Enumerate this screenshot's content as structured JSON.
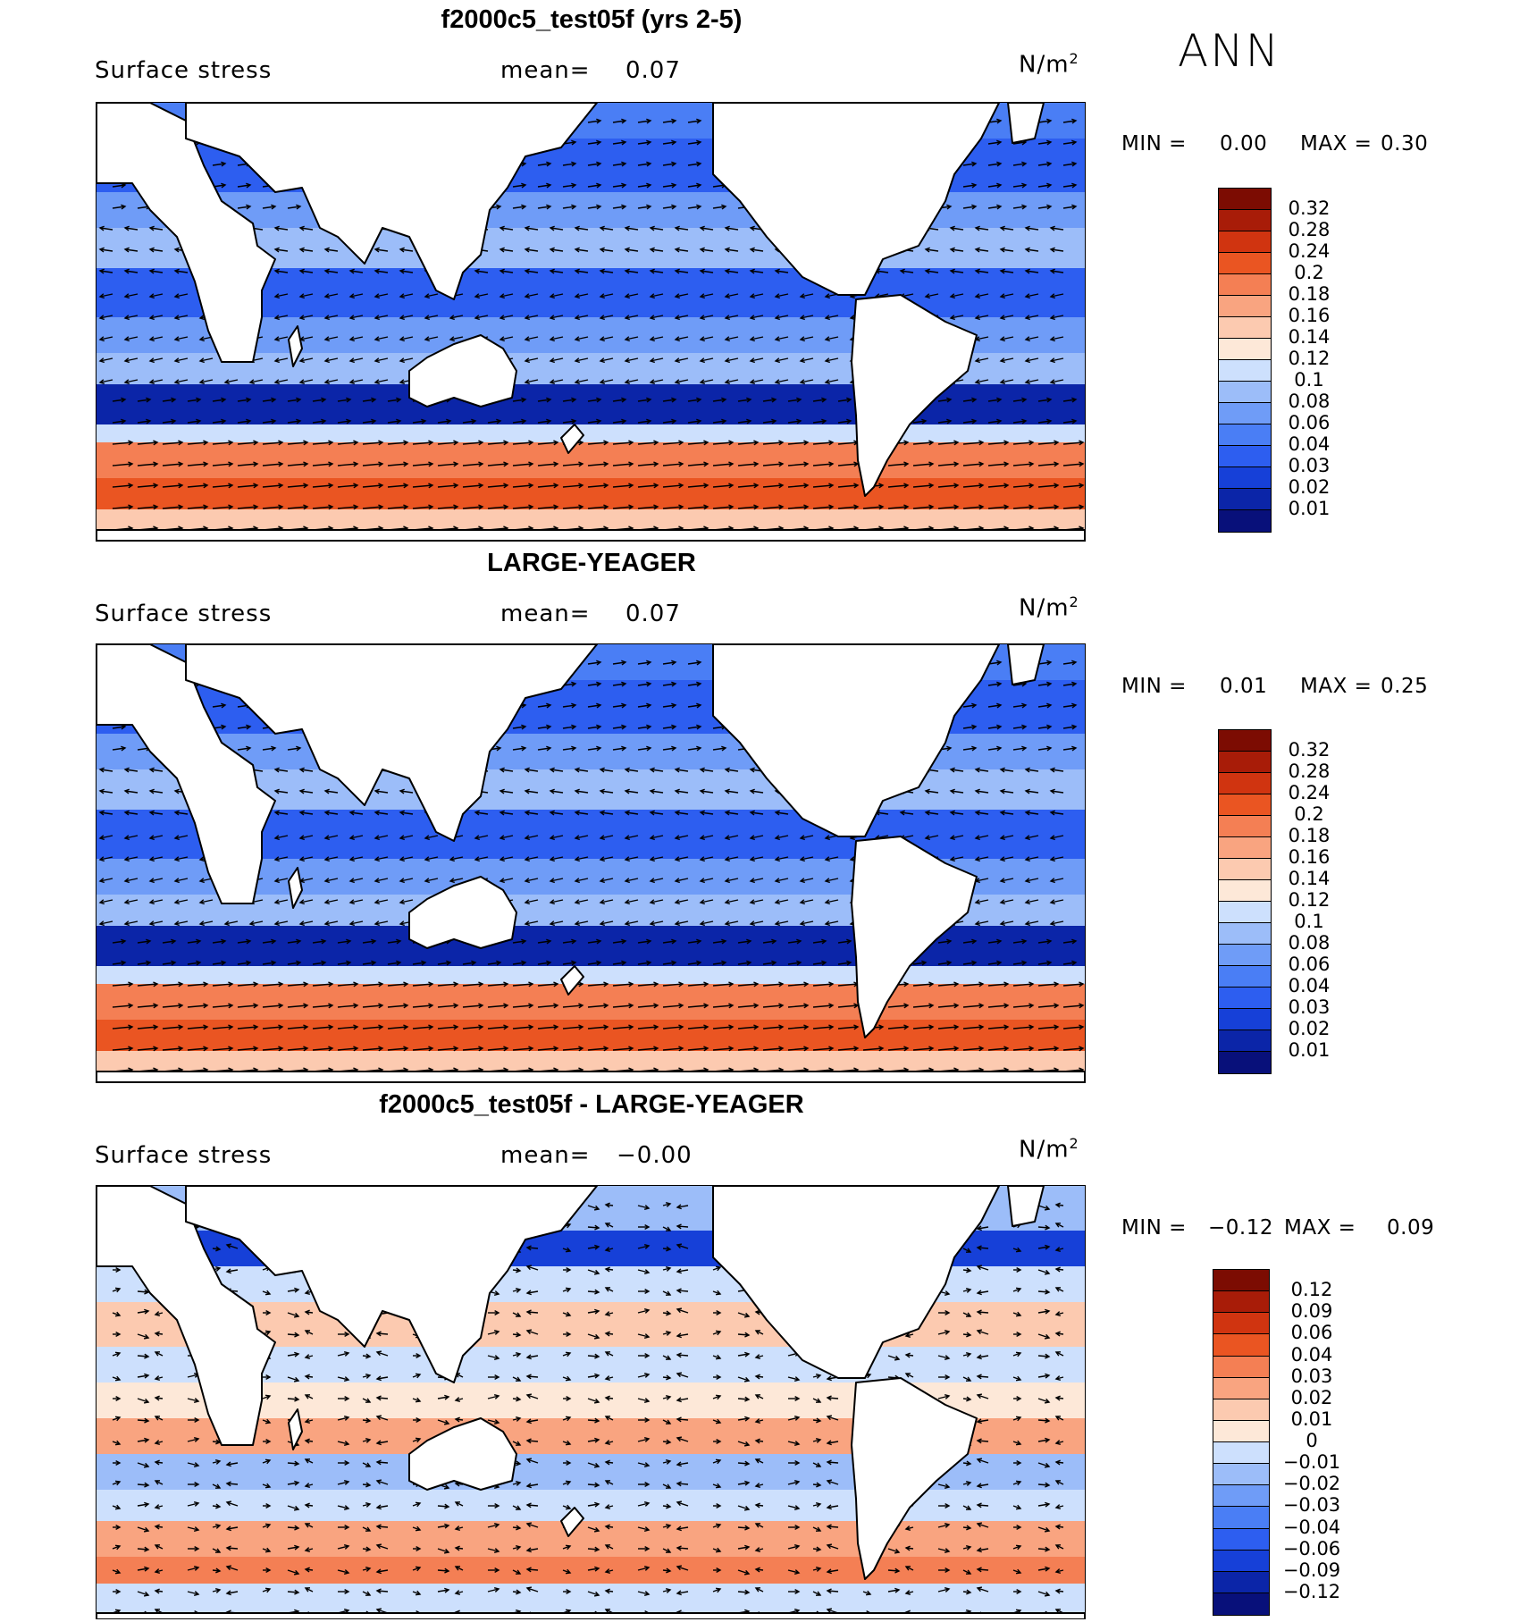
{
  "season": "ANN",
  "colors": {
    "fieldScale": [
      "#08107a",
      "#0b25a8",
      "#1640d8",
      "#2d5ef0",
      "#4a7ef5",
      "#6f9cf7",
      "#9cbdf9",
      "#cde0fd",
      "#fde8d8",
      "#fccab0",
      "#f9a480",
      "#f47f54",
      "#ea5522",
      "#d03410",
      "#a81c08",
      "#7c0c02"
    ],
    "diffScale": [
      "#08107a",
      "#0b25a8",
      "#1640d8",
      "#2d5ef0",
      "#4a7ef5",
      "#6f9cf7",
      "#9cbdf9",
      "#cde0fd",
      "#fde8d8",
      "#fccab0",
      "#f9a480",
      "#f47f54",
      "#ea5522",
      "#d03410",
      "#a81c08",
      "#7c0c02"
    ],
    "land": "#ffffff",
    "coast": "#000000"
  },
  "panels": [
    {
      "title": "f2000c5_test05f (yrs 2-5)",
      "variable": "Surface stress",
      "mean_label": "mean=",
      "mean": "0.07",
      "units_base": "N/m",
      "units_exp": "2",
      "min_label": "MIN =",
      "min": "0.00",
      "max_label": "MAX =",
      "max": "0.30",
      "colorbar_labels": [
        "0.32",
        "0.28",
        "0.24",
        "0.2",
        "0.18",
        "0.16",
        "0.14",
        "0.12",
        "0.1",
        "0.08",
        "0.06",
        "0.04",
        "0.03",
        "0.02",
        "0.01"
      ]
    },
    {
      "title": "LARGE-YEAGER",
      "variable": "Surface stress",
      "mean_label": "mean=",
      "mean": "0.07",
      "units_base": "N/m",
      "units_exp": "2",
      "min_label": "MIN =",
      "min": "0.01",
      "max_label": "MAX =",
      "max": "0.25",
      "colorbar_labels": [
        "0.32",
        "0.28",
        "0.24",
        "0.2",
        "0.18",
        "0.16",
        "0.14",
        "0.12",
        "0.1",
        "0.08",
        "0.06",
        "0.04",
        "0.03",
        "0.02",
        "0.01"
      ]
    },
    {
      "title": "f2000c5_test05f - LARGE-YEAGER",
      "variable": "Surface stress",
      "mean_label": "mean=",
      "mean": "−0.00",
      "units_base": "N/m",
      "units_exp": "2",
      "min_label": "MIN =",
      "min": "−0.12",
      "max_label": "MAX =",
      "max": "0.09",
      "colorbar_labels": [
        "0.12",
        "0.09",
        "0.06",
        "0.04",
        "0.03",
        "0.02",
        "0.01",
        "0",
        "−0.01",
        "−0.02",
        "−0.03",
        "−0.04",
        "−0.06",
        "−0.09",
        "−0.12"
      ]
    }
  ]
}
